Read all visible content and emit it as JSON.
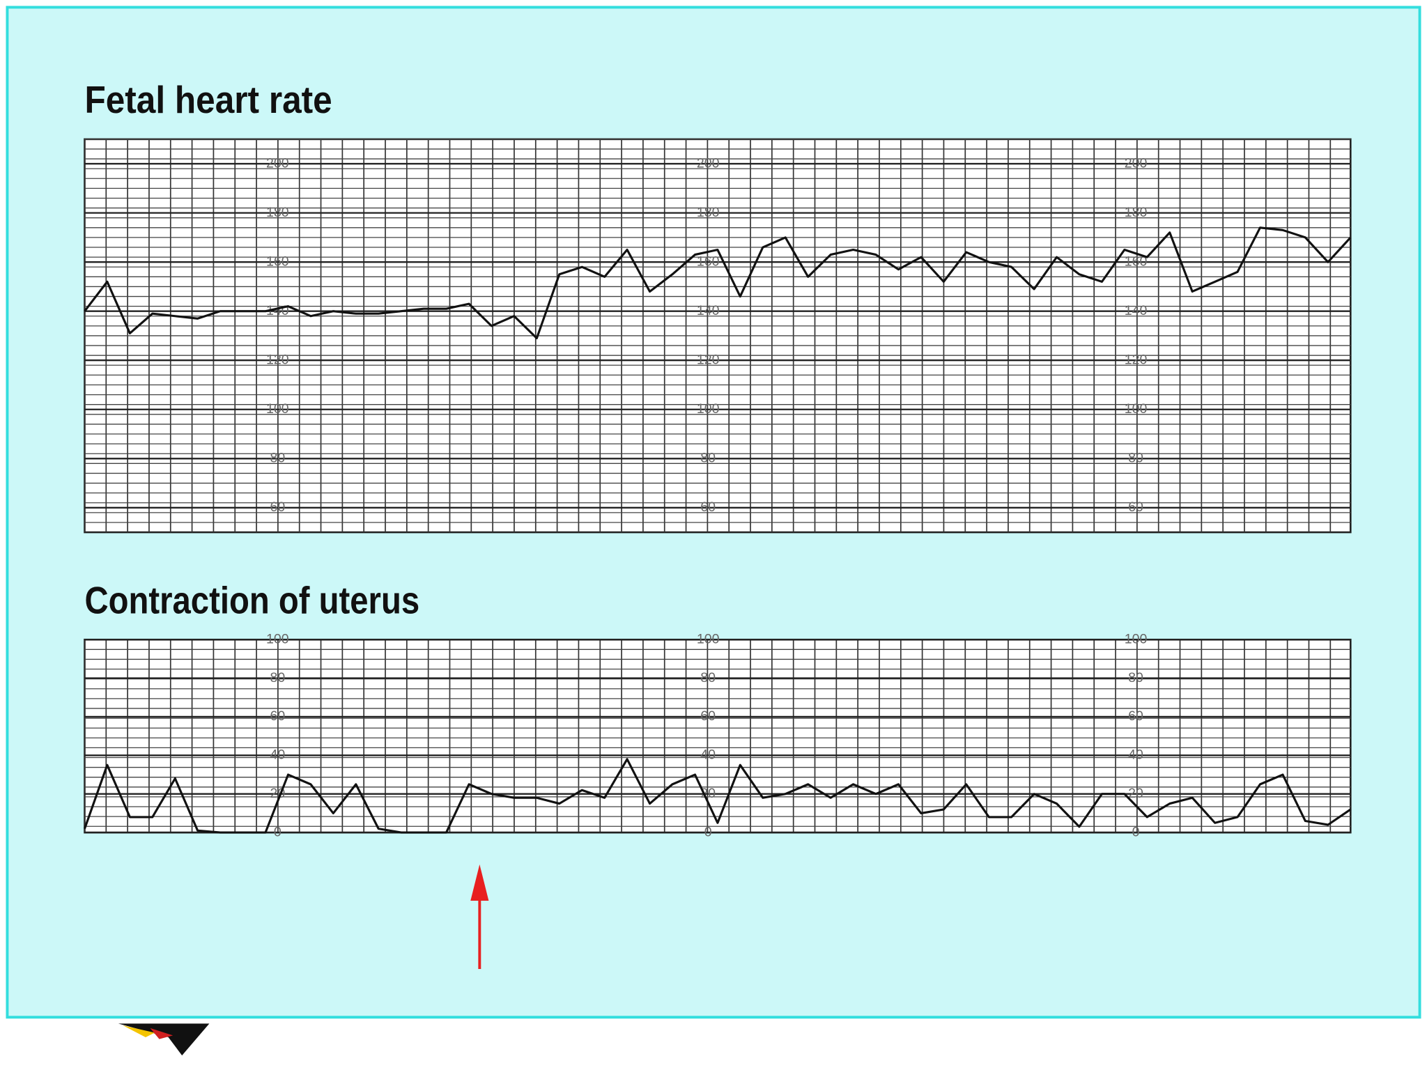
{
  "chart_data": [
    {
      "type": "line",
      "title": "Fetal heart rate",
      "color": "#111111",
      "grid": true,
      "ylim": [
        50,
        210
      ],
      "yticks": [
        60,
        80,
        100,
        120,
        140,
        160,
        180,
        200
      ],
      "values": [
        140,
        152,
        131,
        139,
        138,
        137,
        140,
        140,
        140,
        142,
        138,
        140,
        139,
        139,
        140,
        141,
        141,
        143,
        134,
        138,
        129,
        155,
        158,
        154,
        165,
        148,
        155,
        163,
        165,
        146,
        166,
        170,
        154,
        163,
        165,
        163,
        157,
        162,
        152,
        164,
        160,
        158,
        149,
        162,
        155,
        152,
        165,
        162,
        172,
        148,
        152,
        156,
        174,
        173,
        170,
        160,
        170
      ]
    },
    {
      "type": "line",
      "title": "Contraction of uterus",
      "color": "#111111",
      "grid": true,
      "ylim": [
        0,
        100
      ],
      "yticks": [
        0,
        20,
        40,
        60,
        80,
        100
      ],
      "values": [
        2,
        35,
        8,
        8,
        28,
        1,
        0,
        0,
        0,
        30,
        25,
        10,
        25,
        2,
        0,
        0,
        0,
        25,
        20,
        18,
        18,
        15,
        22,
        18,
        38,
        15,
        25,
        30,
        5,
        35,
        18,
        20,
        25,
        18,
        25,
        20,
        25,
        10,
        12,
        25,
        8,
        8,
        20,
        15,
        3,
        20,
        20,
        8,
        15,
        18,
        5,
        8,
        25,
        30,
        6,
        4,
        12
      ]
    }
  ]
}
